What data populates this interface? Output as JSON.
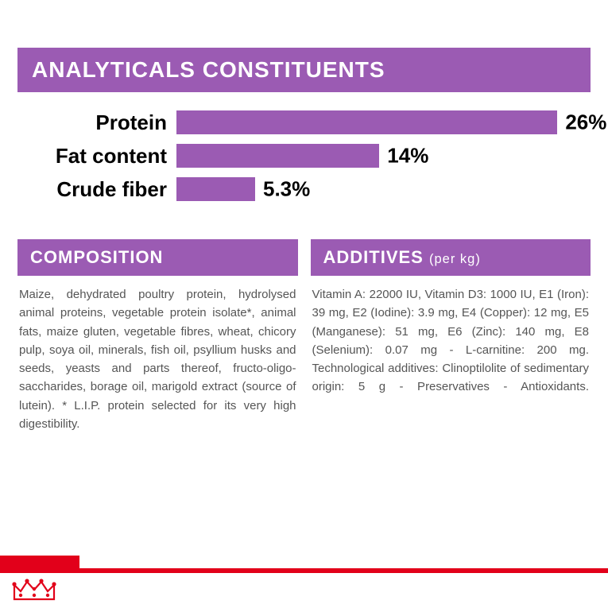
{
  "analyticals": {
    "header_text": "ANALYTICALS CONSTITUENTS",
    "header_bg": "#9b5bb3",
    "header_fontsize": 28,
    "label_fontsize": 26,
    "value_fontsize": 26,
    "bar_color": "#9b5bb3",
    "rows": [
      {
        "label": "Protein",
        "display_value": "26%",
        "value_pct": 26,
        "bar_scale_pct": 92
      },
      {
        "label": "Fat content",
        "display_value": "14%",
        "value_pct": 14,
        "bar_scale_pct": 49
      },
      {
        "label": "Crude fiber",
        "display_value": "5.3%",
        "value_pct": 5.3,
        "bar_scale_pct": 19
      }
    ],
    "max_value": 28
  },
  "composition": {
    "header_text": "COMPOSITION",
    "header_bg": "#9b5bb3",
    "header_fontsize": 22,
    "body_text": "Maize, dehydrated poultry protein, hydrolysed animal proteins, vegetable protein isolate*, animal fats, maize gluten, vegetable fibres, wheat, chicory pulp, soya oil, minerals, fish oil, psyllium husks and seeds, yeasts and parts thereof, fructo-oligo-saccharides, borage oil, marigold extract (source of lutein). * L.I.P. protein selected for its very high digestibility.",
    "body_fontsize": 15,
    "body_color": "#555555"
  },
  "additives": {
    "header_text": "ADDITIVES",
    "header_sub": "(per kg)",
    "header_bg": "#9b5bb3",
    "header_fontsize": 22,
    "body_text": "Vitamin A: 22000 IU, Vitamin D3: 1000 IU, E1 (Iron): 39 mg, E2 (Iodine): 3.9 mg, E4 (Copper): 12 mg, E5 (Manganese): 51 mg, E6 (Zinc): 140 mg, E8 (Selenium): 0.07 mg - L-carnitine: 200 mg. Technological additives: Clinoptilolite of sedimentary origin: 5 g - Preservatives - Antioxidants.",
    "body_fontsize": 15,
    "body_color": "#555555"
  },
  "footer": {
    "red_color": "#e2001a",
    "crown_color": "#e2001a"
  }
}
